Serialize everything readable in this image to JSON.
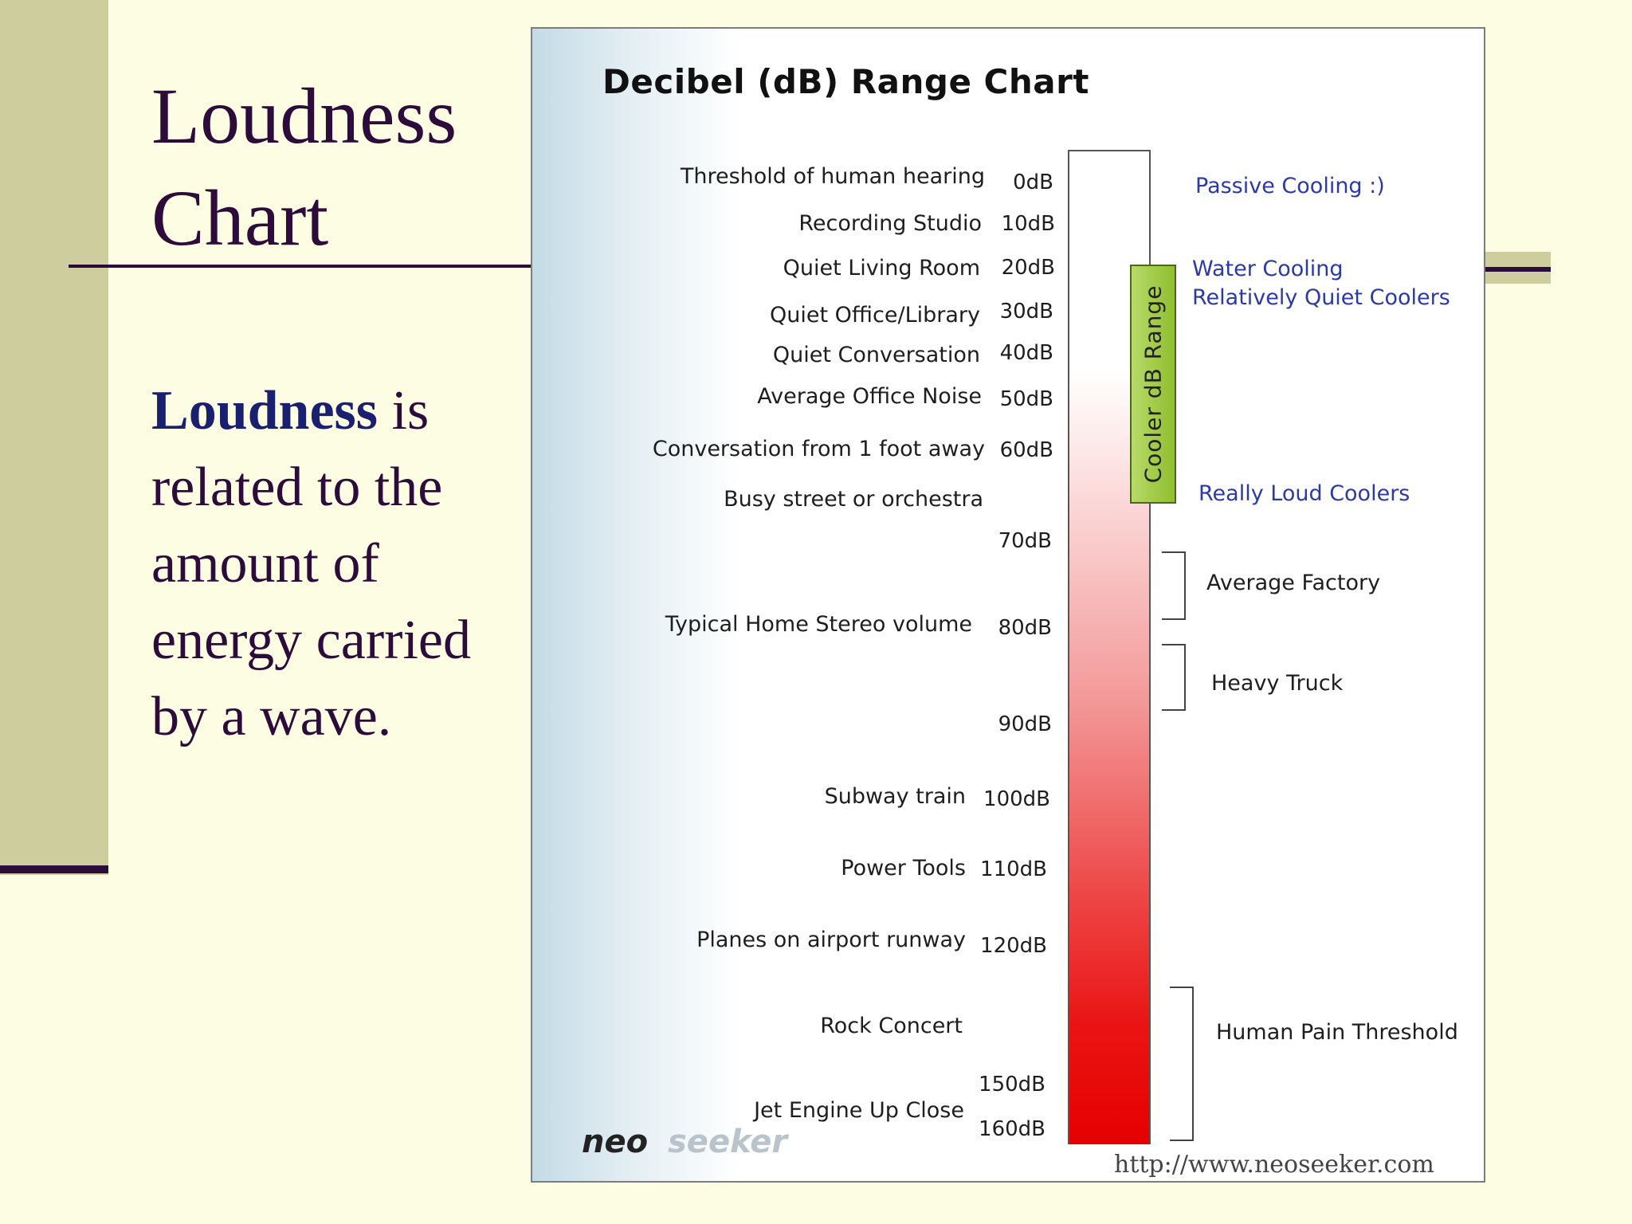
{
  "slide": {
    "title_line1": "Loudness",
    "title_line2": "Chart",
    "body_keyword": "Loudness",
    "body_rest": " is related to the amount of energy carried by a wave."
  },
  "chart": {
    "title": "Decibel (dB) Range Chart",
    "range_label": "Cooler dB Range",
    "sources": [
      "Threshold of human hearing",
      "Recording Studio",
      "Quiet Living Room",
      "Quiet Office/Library",
      "Quiet Conversation",
      "Average Office Noise",
      "Conversation from 1 foot away",
      "Busy street or orchestra",
      "Typical Home Stereo volume",
      "Subway train",
      "Power Tools",
      "Planes on airport runway",
      "Rock Concert",
      "Jet Engine Up Close"
    ],
    "db_levels": [
      "0dB",
      "10dB",
      "20dB",
      "30dB",
      "40dB",
      "50dB",
      "60dB",
      "70dB",
      "80dB",
      "90dB",
      "100dB",
      "110dB",
      "120dB",
      "150dB",
      "160dB"
    ],
    "cooler_labels": [
      "Passive Cooling :)",
      "Water Cooling",
      "Relatively Quiet Coolers",
      "Really Loud Coolers"
    ],
    "noise_labels": [
      "Average Factory",
      "Heavy Truck",
      "Human Pain Threshold"
    ],
    "logo_dark": "neo",
    "logo_light": "seeker",
    "url": "http://www.neoseeker.com"
  }
}
